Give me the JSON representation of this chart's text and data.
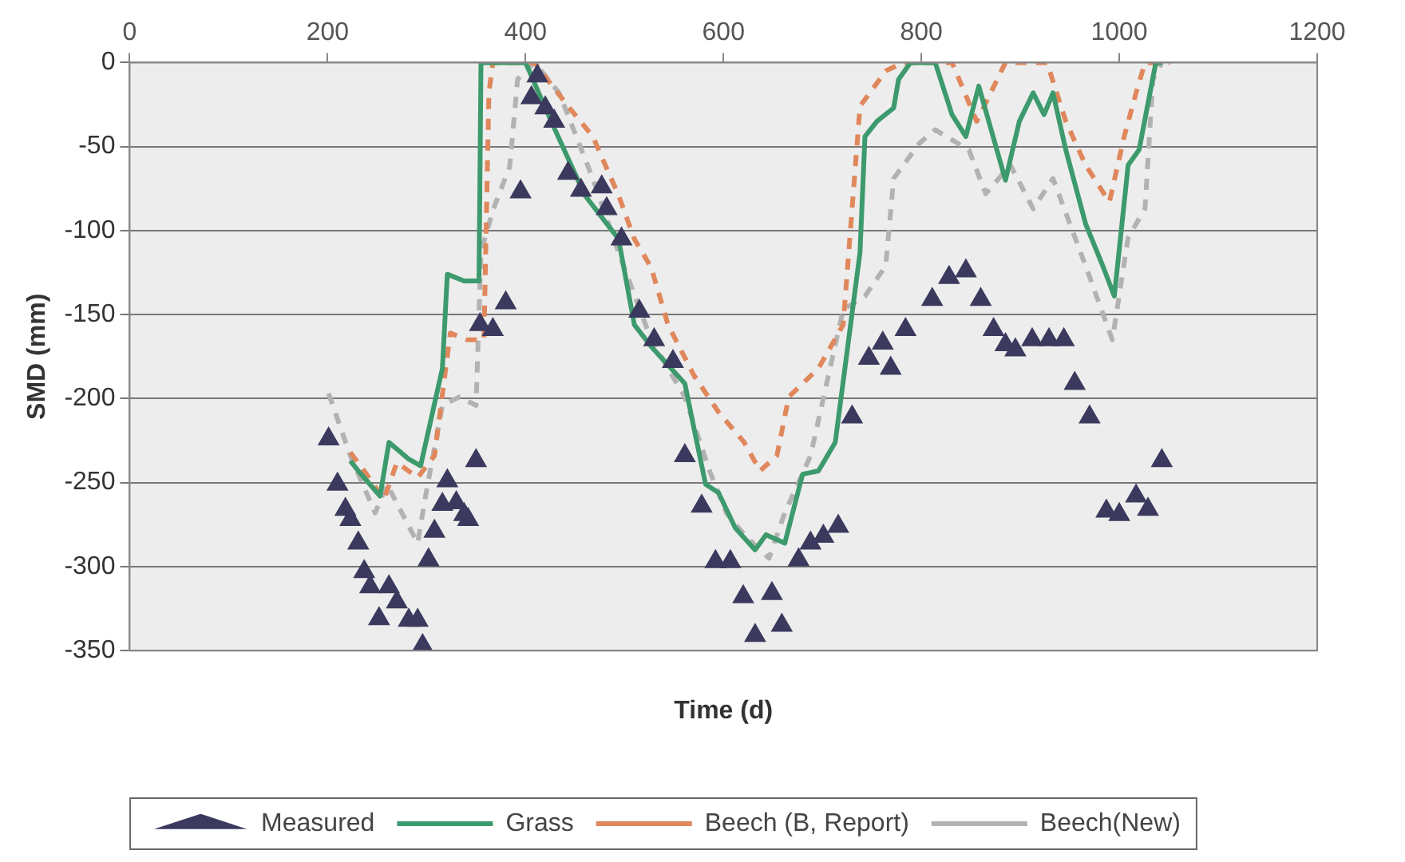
{
  "chart_data": {
    "type": "line",
    "xlabel": "Time (d)",
    "ylabel": "SMD (mm)",
    "xlim": [
      0,
      1200
    ],
    "xticks": [
      0,
      200,
      400,
      600,
      800,
      1000,
      1200
    ],
    "ylim": [
      -350,
      0
    ],
    "yticks": [
      -350,
      -300,
      -250,
      -200,
      -150,
      -100,
      -50,
      0
    ],
    "grid": "y",
    "legend": "bottom",
    "series": [
      {
        "name": "Measured",
        "type": "scatter",
        "marker": "triangle",
        "color": "#3b3a5e",
        "x": [
          201,
          210,
          218,
          223,
          231,
          237,
          243,
          252,
          262,
          270,
          282,
          291,
          296,
          302,
          308,
          316,
          321,
          330,
          338,
          342,
          350,
          354,
          367,
          380,
          395,
          406,
          412,
          420,
          429,
          443,
          456,
          477,
          482,
          497,
          515,
          530,
          549,
          561,
          578,
          592,
          607,
          620,
          632,
          649,
          659,
          676,
          688,
          701,
          716,
          730,
          747,
          761,
          769,
          784,
          811,
          828,
          845,
          860,
          873,
          885,
          895,
          912,
          929,
          944,
          955,
          970,
          987,
          1000,
          1017,
          1029,
          1043
        ],
        "values": [
          -224,
          -251,
          -266,
          -272,
          -286,
          -303,
          -312,
          -331,
          -312,
          -321,
          -332,
          -332,
          -347,
          -296,
          -279,
          -263,
          -249,
          -262,
          -269,
          -272,
          -237,
          -156,
          -159,
          -143,
          -77,
          -21,
          -8,
          -27,
          -35,
          -66,
          -76,
          -74,
          -87,
          -105,
          -148,
          -165,
          -178,
          -234,
          -264,
          -297,
          -297,
          -318,
          -341,
          -316,
          -335,
          -296,
          -286,
          -282,
          -276,
          -211,
          -176,
          -167,
          -182,
          -159,
          -141,
          -128,
          -124,
          -141,
          -159,
          -168,
          -171,
          -165,
          -165,
          -165,
          -191,
          -211,
          -267,
          -269,
          -258,
          -266,
          -237
        ]
      },
      {
        "name": "Grass",
        "marker": "none",
        "line_style": "solid",
        "color": "#3d9a6c",
        "x": [
          223,
          231,
          253,
          262,
          282,
          294,
          316,
          321,
          338,
          353,
          355,
          400,
          426,
          460,
          494,
          510,
          527,
          561,
          570,
          582,
          595,
          612,
          632,
          643,
          662,
          680,
          696,
          713,
          738,
          743,
          755,
          772,
          777,
          789,
          814,
          831,
          845,
          858,
          885,
          899,
          913,
          924,
          933,
          946,
          966,
          984,
          995,
          1009,
          1020,
          1034,
          1037,
          1043
        ],
        "values": [
          -237,
          -243,
          -258,
          -226,
          -236,
          -240,
          -182,
          -126,
          -130,
          -130,
          0,
          0,
          -35,
          -79,
          -105,
          -156,
          -169,
          -191,
          -217,
          -251,
          -256,
          -277,
          -290,
          -281,
          -286,
          -245,
          -243,
          -226,
          -113,
          -44,
          -35,
          -27,
          -10,
          0,
          0,
          -31,
          -44,
          -14,
          -70,
          -35,
          -18,
          -31,
          -18,
          -52,
          -96,
          -122,
          -139,
          -61,
          -52,
          -9,
          0,
          0
        ]
      },
      {
        "name": "Beech (B, Report)",
        "marker": "none",
        "line_style": "dashed",
        "color": "#e0875c",
        "x": [
          223,
          237,
          257,
          270,
          291,
          308,
          324,
          341,
          358,
          363,
          367,
          409,
          443,
          468,
          494,
          510,
          527,
          544,
          570,
          595,
          621,
          637,
          654,
          666,
          696,
          721,
          738,
          764,
          781,
          831,
          856,
          885,
          927,
          946,
          966,
          990,
          1005,
          1017,
          1026,
          1051
        ],
        "values": [
          -232,
          -243,
          -260,
          -238,
          -247,
          -234,
          -161,
          -165,
          -165,
          -18,
          0,
          0,
          -26,
          -44,
          -79,
          -105,
          -122,
          -156,
          -186,
          -208,
          -226,
          -243,
          -234,
          -199,
          -182,
          -156,
          -26,
          -5,
          0,
          0,
          -35,
          0,
          0,
          -35,
          -61,
          -83,
          -44,
          -18,
          0,
          0
        ]
      },
      {
        "name": "Beech(New)",
        "marker": "none",
        "line_style": "dashed",
        "color": "#b2b2b2",
        "x": [
          201,
          223,
          248,
          260,
          291,
          299,
          316,
          333,
          350,
          355,
          367,
          384,
          392,
          409,
          434,
          468,
          494,
          527,
          561,
          586,
          603,
          621,
          646,
          662,
          688,
          721,
          743,
          764,
          772,
          798,
          814,
          848,
          865,
          890,
          913,
          933,
          966,
          993,
          1009,
          1026,
          1034,
          1043
        ],
        "values": [
          -197,
          -234,
          -268,
          -251,
          -286,
          -258,
          -204,
          -199,
          -204,
          -113,
          -88,
          -62,
          -10,
          0,
          -18,
          -69,
          -113,
          -165,
          -199,
          -243,
          -268,
          -281,
          -295,
          -268,
          -234,
          -147,
          -139,
          -121,
          -69,
          -48,
          -40,
          -52,
          -78,
          -61,
          -87,
          -69,
          -121,
          -165,
          -104,
          -87,
          -10,
          0
        ]
      }
    ]
  }
}
